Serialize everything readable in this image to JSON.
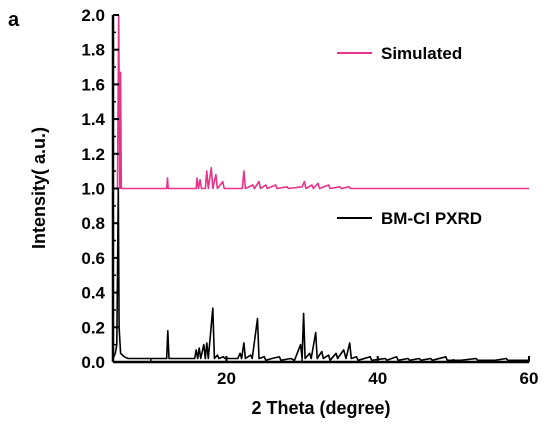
{
  "chart_data": {
    "type": "line",
    "panel_label": "a",
    "xlabel": "2 Theta (degree)",
    "ylabel": "Intensity( a.u.)",
    "xlim": [
      5,
      60
    ],
    "ylim": [
      0,
      2.0
    ],
    "x_ticks": [
      20,
      40,
      60
    ],
    "y_ticks": [
      0.0,
      0.2,
      0.4,
      0.6,
      0.8,
      1.0,
      1.2,
      1.4,
      1.6,
      1.8,
      2.0
    ],
    "y_tick_labels": [
      "0.0",
      "0.2",
      "0.4",
      "0.6",
      "0.8",
      "1.0",
      "1.2",
      "1.4",
      "1.6",
      "1.8",
      "2.0"
    ],
    "x_tick_labels": [
      "20",
      "40",
      "60"
    ],
    "grid": false,
    "legend_position": "right",
    "series": [
      {
        "name": "Simulated",
        "color": "#e8338a",
        "baseline": 1.0,
        "points": [
          [
            5.0,
            1.0
          ],
          [
            5.6,
            1.0
          ],
          [
            5.75,
            2.0
          ],
          [
            5.9,
            1.0
          ],
          [
            6.0,
            1.67
          ],
          [
            6.1,
            1.0
          ],
          [
            12.1,
            1.0
          ],
          [
            12.2,
            1.06
          ],
          [
            12.3,
            1.0
          ],
          [
            16.0,
            1.0
          ],
          [
            16.1,
            1.06
          ],
          [
            16.3,
            1.0
          ],
          [
            16.5,
            1.05
          ],
          [
            16.7,
            1.0
          ],
          [
            17.2,
            1.0
          ],
          [
            17.4,
            1.1
          ],
          [
            17.6,
            1.0
          ],
          [
            17.8,
            1.06
          ],
          [
            18.0,
            1.12
          ],
          [
            18.2,
            1.0
          ],
          [
            18.6,
            1.08
          ],
          [
            18.8,
            1.0
          ],
          [
            19.5,
            1.04
          ],
          [
            19.7,
            1.0
          ],
          [
            22.1,
            1.0
          ],
          [
            22.3,
            1.1
          ],
          [
            22.5,
            1.0
          ],
          [
            23.5,
            1.02
          ],
          [
            23.7,
            1.0
          ],
          [
            24.3,
            1.04
          ],
          [
            24.5,
            1.0
          ],
          [
            25.2,
            1.02
          ],
          [
            25.4,
            1.0
          ],
          [
            26.5,
            1.02
          ],
          [
            26.7,
            1.0
          ],
          [
            28.0,
            1.01
          ],
          [
            28.2,
            1.0
          ],
          [
            30.0,
            1.01
          ],
          [
            30.3,
            1.04
          ],
          [
            30.5,
            1.0
          ],
          [
            31.3,
            1.02
          ],
          [
            31.5,
            1.0
          ],
          [
            32.1,
            1.03
          ],
          [
            32.3,
            1.0
          ],
          [
            33.5,
            1.02
          ],
          [
            33.7,
            1.0
          ],
          [
            35.0,
            1.01
          ],
          [
            35.2,
            1.0
          ],
          [
            36.2,
            1.01
          ],
          [
            36.4,
            1.0
          ],
          [
            60.0,
            1.0
          ]
        ]
      },
      {
        "name": "BM-Cl PXRD",
        "color": "#000000",
        "baseline": 0.0,
        "points": [
          [
            5.0,
            0.02
          ],
          [
            5.3,
            0.05
          ],
          [
            5.5,
            0.1
          ],
          [
            5.7,
            1.0
          ],
          [
            5.8,
            0.2
          ],
          [
            6.0,
            0.05
          ],
          [
            6.5,
            0.03
          ],
          [
            7.0,
            0.02
          ],
          [
            12.1,
            0.02
          ],
          [
            12.25,
            0.18
          ],
          [
            12.4,
            0.02
          ],
          [
            15.8,
            0.02
          ],
          [
            16.0,
            0.07
          ],
          [
            16.2,
            0.02
          ],
          [
            16.4,
            0.08
          ],
          [
            16.6,
            0.02
          ],
          [
            17.0,
            0.1
          ],
          [
            17.2,
            0.02
          ],
          [
            17.4,
            0.11
          ],
          [
            17.6,
            0.02
          ],
          [
            18.2,
            0.31
          ],
          [
            18.4,
            0.02
          ],
          [
            18.8,
            0.04
          ],
          [
            19.0,
            0.02
          ],
          [
            19.6,
            0.03
          ],
          [
            19.8,
            0.02
          ],
          [
            21.5,
            0.02
          ],
          [
            21.8,
            0.05
          ],
          [
            22.0,
            0.02
          ],
          [
            22.3,
            0.11
          ],
          [
            22.5,
            0.02
          ],
          [
            23.2,
            0.04
          ],
          [
            23.4,
            0.02
          ],
          [
            24.1,
            0.25
          ],
          [
            24.3,
            0.02
          ],
          [
            25.0,
            0.03
          ],
          [
            25.2,
            0.01
          ],
          [
            26.0,
            0.02
          ],
          [
            27.0,
            0.03
          ],
          [
            27.2,
            0.01
          ],
          [
            28.5,
            0.02
          ],
          [
            29.0,
            0.01
          ],
          [
            29.8,
            0.1
          ],
          [
            30.0,
            0.02
          ],
          [
            30.2,
            0.28
          ],
          [
            30.4,
            0.02
          ],
          [
            31.0,
            0.05
          ],
          [
            31.2,
            0.02
          ],
          [
            31.8,
            0.17
          ],
          [
            32.0,
            0.02
          ],
          [
            32.6,
            0.06
          ],
          [
            32.8,
            0.02
          ],
          [
            33.5,
            0.04
          ],
          [
            33.7,
            0.01
          ],
          [
            34.5,
            0.05
          ],
          [
            34.7,
            0.02
          ],
          [
            35.5,
            0.07
          ],
          [
            35.8,
            0.02
          ],
          [
            36.3,
            0.11
          ],
          [
            36.5,
            0.02
          ],
          [
            37.2,
            0.03
          ],
          [
            37.4,
            0.01
          ],
          [
            39.0,
            0.03
          ],
          [
            39.2,
            0.01
          ],
          [
            41.0,
            0.02
          ],
          [
            41.2,
            0.01
          ],
          [
            42.5,
            0.03
          ],
          [
            42.7,
            0.01
          ],
          [
            44.0,
            0.02
          ],
          [
            44.2,
            0.01
          ],
          [
            45.5,
            0.02
          ],
          [
            45.7,
            0.01
          ],
          [
            47.0,
            0.02
          ],
          [
            47.2,
            0.01
          ],
          [
            49.0,
            0.03
          ],
          [
            49.2,
            0.01
          ],
          [
            51.0,
            0.01
          ],
          [
            53.0,
            0.02
          ],
          [
            53.2,
            0.01
          ],
          [
            55.5,
            0.01
          ],
          [
            57.0,
            0.02
          ],
          [
            57.2,
            0.01
          ],
          [
            60.0,
            0.01
          ]
        ]
      }
    ]
  }
}
